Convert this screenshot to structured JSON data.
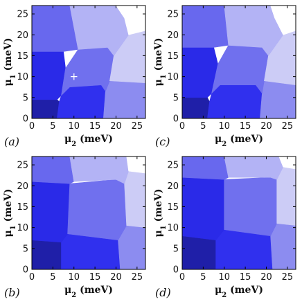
{
  "chart_data": [
    {
      "type": "heatmap",
      "panel_label": "(a)",
      "xlabel_base": "μ",
      "xlabel_sub": "2",
      "xlabel_unit": " (meV)",
      "ylabel_base": "μ",
      "ylabel_sub": "1",
      "ylabel_unit": " (meV)",
      "xlim": [
        0,
        27
      ],
      "ylim": [
        0,
        27
      ],
      "xticks": [
        0,
        5,
        10,
        15,
        20,
        25
      ],
      "yticks": [
        0,
        5,
        10,
        15,
        20,
        25
      ],
      "marker": {
        "symbol": "+",
        "x": 10,
        "y": 10
      },
      "regions": [
        {
          "color": "#1f1fa8",
          "points": [
            [
              0,
              0
            ],
            [
              6,
              0
            ],
            [
              6.5,
              4
            ],
            [
              6,
              4.5
            ],
            [
              0,
              4.5
            ]
          ]
        },
        {
          "color": "#3030ee",
          "points": [
            [
              6,
              0
            ],
            [
              17,
              0
            ],
            [
              17.5,
              6.5
            ],
            [
              16.5,
              8
            ],
            [
              9,
              7.5
            ],
            [
              7,
              5.5
            ],
            [
              6.5,
              4
            ]
          ]
        },
        {
          "color": "#8c8cf0",
          "points": [
            [
              17,
              0
            ],
            [
              27,
              0
            ],
            [
              27,
              8.5
            ],
            [
              18.5,
              9
            ],
            [
              17.5,
              6.5
            ]
          ]
        },
        {
          "color": "#2a2ae8",
          "points": [
            [
              0,
              4.5
            ],
            [
              6,
              4.5
            ],
            [
              7,
              5.5
            ],
            [
              8,
              12
            ],
            [
              7.5,
              16
            ],
            [
              0,
              16
            ]
          ]
        },
        {
          "color": "#7070ee",
          "points": [
            [
              7,
              5.5
            ],
            [
              9,
              7.5
            ],
            [
              16.5,
              8
            ],
            [
              17.5,
              6.5
            ],
            [
              18.5,
              9
            ],
            [
              19.5,
              15
            ],
            [
              18,
              17
            ],
            [
              11,
              16.5
            ],
            [
              8,
              12
            ]
          ]
        },
        {
          "color": "#ccccf6",
          "points": [
            [
              18.5,
              9
            ],
            [
              27,
              8.5
            ],
            [
              27,
              21
            ],
            [
              23,
              20
            ],
            [
              19.5,
              15
            ]
          ]
        },
        {
          "color": "#6868ee",
          "points": [
            [
              0,
              16
            ],
            [
              7.5,
              16
            ],
            [
              11,
              16.5
            ],
            [
              9,
              27
            ],
            [
              0,
              27
            ]
          ]
        },
        {
          "color": "#b3b3f5",
          "points": [
            [
              11,
              16.5
            ],
            [
              18,
              17
            ],
            [
              19.5,
              15
            ],
            [
              23,
              20
            ],
            [
              22,
              24
            ],
            [
              20,
              27
            ],
            [
              9,
              27
            ]
          ]
        },
        {
          "color": "#ffffff",
          "points": [
            [
              22,
              24
            ],
            [
              23,
              20
            ],
            [
              27,
              21
            ],
            [
              27,
              27
            ],
            [
              20,
              27
            ]
          ]
        }
      ]
    },
    {
      "type": "heatmap",
      "panel_label": "(c)",
      "xlabel_base": "μ",
      "xlabel_sub": "2",
      "xlabel_unit": " (meV)",
      "ylabel_base": "μ",
      "ylabel_sub": "1",
      "ylabel_unit": " (meV)",
      "xlim": [
        0,
        27
      ],
      "ylim": [
        0,
        27
      ],
      "xticks": [
        0,
        5,
        10,
        15,
        20,
        25
      ],
      "yticks": [
        0,
        5,
        10,
        15,
        20,
        25
      ],
      "regions": [
        {
          "color": "#1f1fa8",
          "points": [
            [
              0,
              0
            ],
            [
              6,
              0
            ],
            [
              6.5,
              4
            ],
            [
              6,
              5
            ],
            [
              0,
              5
            ]
          ]
        },
        {
          "color": "#3030ee",
          "points": [
            [
              6,
              0
            ],
            [
              18.5,
              0
            ],
            [
              19,
              6
            ],
            [
              17.5,
              8
            ],
            [
              9,
              8
            ],
            [
              7,
              6
            ],
            [
              6.5,
              4
            ]
          ]
        },
        {
          "color": "#8c8cf0",
          "points": [
            [
              18.5,
              0
            ],
            [
              27,
              0
            ],
            [
              27,
              8
            ],
            [
              19.5,
              9
            ],
            [
              19,
              6
            ]
          ]
        },
        {
          "color": "#2a2ae8",
          "points": [
            [
              0,
              5
            ],
            [
              6,
              5
            ],
            [
              7,
              6
            ],
            [
              8.5,
              13
            ],
            [
              7.5,
              17
            ],
            [
              0,
              17
            ]
          ]
        },
        {
          "color": "#7070ee",
          "points": [
            [
              7,
              6
            ],
            [
              9,
              8
            ],
            [
              17.5,
              8
            ],
            [
              19,
              6
            ],
            [
              19.5,
              9
            ],
            [
              20.5,
              15
            ],
            [
              19,
              17
            ],
            [
              11,
              17.5
            ],
            [
              8.5,
              13
            ]
          ]
        },
        {
          "color": "#ccccf6",
          "points": [
            [
              19.5,
              9
            ],
            [
              27,
              8
            ],
            [
              27,
              21
            ],
            [
              24,
              20
            ],
            [
              20.5,
              15
            ]
          ]
        },
        {
          "color": "#6868ee",
          "points": [
            [
              0,
              17
            ],
            [
              7.5,
              17
            ],
            [
              11,
              17.5
            ],
            [
              10,
              27
            ],
            [
              0,
              27
            ]
          ]
        },
        {
          "color": "#b3b3f5",
          "points": [
            [
              11,
              17.5
            ],
            [
              19,
              17
            ],
            [
              20.5,
              15
            ],
            [
              24,
              20
            ],
            [
              22,
              24
            ],
            [
              21,
              27
            ],
            [
              10,
              27
            ]
          ]
        },
        {
          "color": "#ffffff",
          "points": [
            [
              22,
              24
            ],
            [
              24,
              20
            ],
            [
              27,
              21
            ],
            [
              27,
              27
            ],
            [
              21,
              27
            ]
          ]
        }
      ]
    },
    {
      "type": "heatmap",
      "panel_label": "(b)",
      "xlabel_base": "μ",
      "xlabel_sub": "2",
      "xlabel_unit": " (meV)",
      "ylabel_base": "μ",
      "ylabel_sub": "1",
      "ylabel_unit": " (meV)",
      "xlim": [
        0,
        27
      ],
      "ylim": [
        0,
        27
      ],
      "xticks": [
        0,
        5,
        10,
        15,
        20,
        25
      ],
      "yticks": [
        0,
        5,
        10,
        15,
        20,
        25
      ],
      "regions": [
        {
          "color": "#1f1fa8",
          "points": [
            [
              0,
              0
            ],
            [
              7,
              0
            ],
            [
              7,
              6.5
            ],
            [
              0,
              7
            ]
          ]
        },
        {
          "color": "#3030ee",
          "points": [
            [
              7,
              0
            ],
            [
              21,
              0
            ],
            [
              20.5,
              7
            ],
            [
              8.5,
              8.5
            ],
            [
              7,
              6.5
            ]
          ]
        },
        {
          "color": "#8c8cf0",
          "points": [
            [
              21,
              0
            ],
            [
              27,
              0
            ],
            [
              27,
              10
            ],
            [
              22.5,
              10.5
            ],
            [
              20.5,
              7
            ]
          ]
        },
        {
          "color": "#2a2ae8",
          "points": [
            [
              0,
              7
            ],
            [
              7,
              6.5
            ],
            [
              8.5,
              8.5
            ],
            [
              9,
              20.5
            ],
            [
              0,
              21
            ]
          ]
        },
        {
          "color": "#7070ee",
          "points": [
            [
              8.5,
              8.5
            ],
            [
              20.5,
              7
            ],
            [
              22.5,
              10.5
            ],
            [
              22,
              20.5
            ],
            [
              20,
              21.5
            ],
            [
              9,
              20.5
            ]
          ]
        },
        {
          "color": "#ccccf6",
          "points": [
            [
              22.5,
              10.5
            ],
            [
              27,
              10
            ],
            [
              27,
              23
            ],
            [
              23,
              23.5
            ],
            [
              22,
              20.5
            ]
          ]
        },
        {
          "color": "#6868ee",
          "points": [
            [
              0,
              21
            ],
            [
              9,
              20.5
            ],
            [
              10,
              21
            ],
            [
              9,
              27
            ],
            [
              0,
              27
            ]
          ]
        },
        {
          "color": "#b3b3f5",
          "points": [
            [
              10,
              21
            ],
            [
              20,
              21.5
            ],
            [
              22,
              20.5
            ],
            [
              23,
              23.5
            ],
            [
              22.5,
              27
            ],
            [
              9,
              27
            ]
          ]
        },
        {
          "color": "#ffffff",
          "points": [
            [
              23,
              23.5
            ],
            [
              27,
              23
            ],
            [
              27,
              27
            ],
            [
              22.5,
              27
            ]
          ]
        }
      ]
    },
    {
      "type": "heatmap",
      "panel_label": "(d)",
      "xlabel_base": "μ",
      "xlabel_sub": "2",
      "xlabel_unit": " (meV)",
      "ylabel_base": "μ",
      "ylabel_sub": "1",
      "ylabel_unit": " (meV)",
      "xlim": [
        0,
        27
      ],
      "ylim": [
        0,
        27
      ],
      "xticks": [
        0,
        5,
        10,
        15,
        20,
        25
      ],
      "yticks": [
        0,
        5,
        10,
        15,
        20,
        25
      ],
      "regions": [
        {
          "color": "#1f1fa8",
          "points": [
            [
              0,
              0
            ],
            [
              8,
              0
            ],
            [
              8,
              7
            ],
            [
              0,
              8
            ]
          ]
        },
        {
          "color": "#3030ee",
          "points": [
            [
              8,
              0
            ],
            [
              21.5,
              0
            ],
            [
              21,
              8
            ],
            [
              10,
              9.5
            ],
            [
              8,
              7
            ]
          ]
        },
        {
          "color": "#8c8cf0",
          "points": [
            [
              21.5,
              0
            ],
            [
              27,
              0
            ],
            [
              27,
              10.5
            ],
            [
              22.5,
              11
            ],
            [
              21,
              8
            ]
          ]
        },
        {
          "color": "#2a2ae8",
          "points": [
            [
              0,
              8
            ],
            [
              8,
              7
            ],
            [
              10,
              9.5
            ],
            [
              10,
              21.5
            ],
            [
              0,
              22
            ]
          ]
        },
        {
          "color": "#7070ee",
          "points": [
            [
              10,
              9.5
            ],
            [
              21,
              8
            ],
            [
              22.5,
              11
            ],
            [
              22.5,
              21.5
            ],
            [
              21,
              22
            ],
            [
              10,
              21.5
            ]
          ]
        },
        {
          "color": "#ccccf6",
          "points": [
            [
              22.5,
              11
            ],
            [
              27,
              10.5
            ],
            [
              27,
              24
            ],
            [
              24,
              24.5
            ],
            [
              22.5,
              21.5
            ]
          ]
        },
        {
          "color": "#6868ee",
          "points": [
            [
              0,
              22
            ],
            [
              10,
              21.5
            ],
            [
              11,
              22
            ],
            [
              10,
              27
            ],
            [
              0,
              27
            ]
          ]
        },
        {
          "color": "#b3b3f5",
          "points": [
            [
              11,
              22
            ],
            [
              21,
              22
            ],
            [
              22.5,
              21.5
            ],
            [
              24,
              24.5
            ],
            [
              23,
              27
            ],
            [
              10,
              27
            ]
          ]
        },
        {
          "color": "#ffffff",
          "points": [
            [
              24,
              24.5
            ],
            [
              27,
              24
            ],
            [
              27,
              27
            ],
            [
              23,
              27
            ]
          ]
        }
      ]
    }
  ]
}
